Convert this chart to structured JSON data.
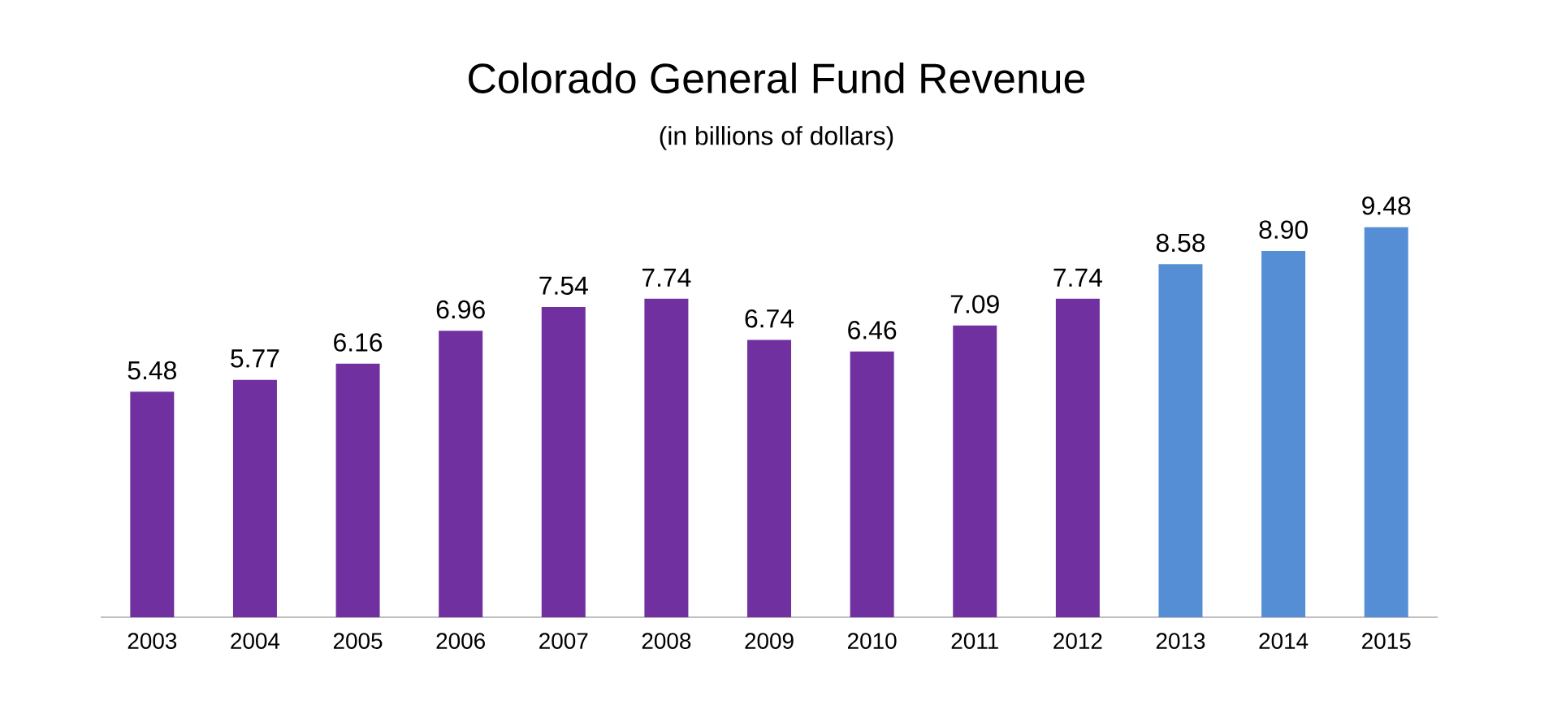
{
  "chart_data": {
    "type": "bar",
    "title": "Colorado General Fund Revenue",
    "subtitle": "(in billions of dollars)",
    "categories": [
      "2003",
      "2004",
      "2005",
      "2006",
      "2007",
      "2008",
      "2009",
      "2010",
      "2011",
      "2012",
      "2013",
      "2014",
      "2015"
    ],
    "values": [
      5.48,
      5.77,
      6.16,
      6.96,
      7.54,
      7.74,
      6.74,
      6.46,
      7.09,
      7.74,
      8.58,
      8.9,
      9.48
    ],
    "value_labels": [
      "5.48",
      "5.77",
      "6.16",
      "6.96",
      "7.54",
      "7.74",
      "6.74",
      "6.46",
      "7.09",
      "7.74",
      "8.58",
      "8.90",
      "9.48"
    ],
    "colors": [
      "#7030a0",
      "#7030a0",
      "#7030a0",
      "#7030a0",
      "#7030a0",
      "#7030a0",
      "#7030a0",
      "#7030a0",
      "#7030a0",
      "#7030a0",
      "#558ed5",
      "#558ed5",
      "#558ed5"
    ]
  }
}
